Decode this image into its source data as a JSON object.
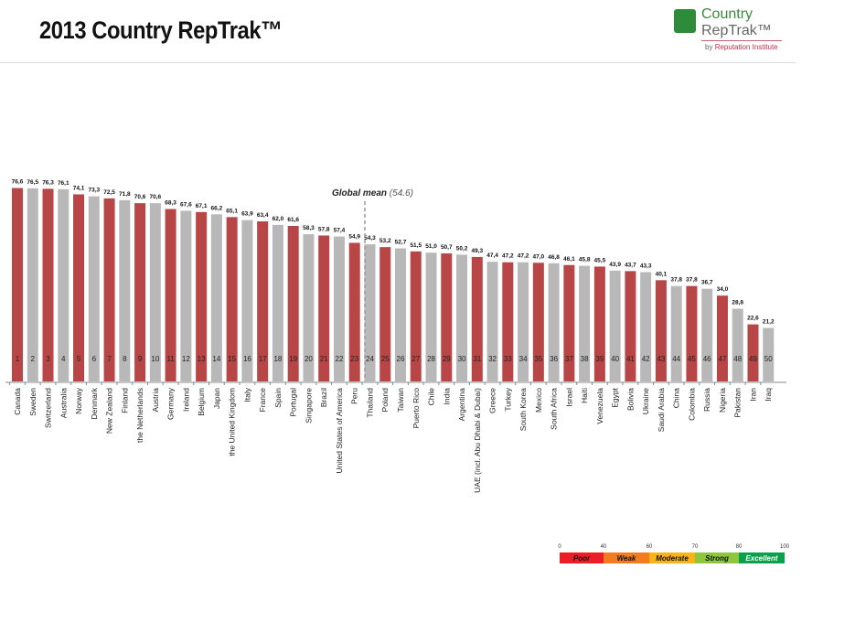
{
  "header": {
    "title": "2013 Country RepTrak™"
  },
  "logo": {
    "line1": "Country",
    "line2": "RepTrak™",
    "by": "by",
    "company": "Reputation Institute"
  },
  "chart_data": {
    "type": "bar",
    "title": "2013 Country RepTrak™",
    "categories": [
      "Canada",
      "Sweden",
      "Switzerland",
      "Australia",
      "Norway",
      "Denmark",
      "New Zealand",
      "Finland",
      "the Netherlands",
      "Austria",
      "Germany",
      "Ireland",
      "Belgium",
      "Japan",
      "the United Kingdom",
      "Italy",
      "France",
      "Spain",
      "Portugal",
      "Singapore",
      "Brazil",
      "United States of America",
      "Peru",
      "Thailand",
      "Poland",
      "Taiwan",
      "Puerto Rico",
      "Chile",
      "India",
      "Argentina",
      "UAE (incl. Abu Dhabi & Dubai)",
      "Greece",
      "Turkey",
      "South Korea",
      "Mexico",
      "South Africa",
      "Israel",
      "Haiti",
      "Venezuela",
      "Egypt",
      "Bolivia",
      "Ukraine",
      "Saudi Arabia",
      "China",
      "Colombia",
      "Russia",
      "Nigeria",
      "Pakistan",
      "Iran",
      "Iraq"
    ],
    "values": [
      76.6,
      76.5,
      76.3,
      76.1,
      74.1,
      73.3,
      72.5,
      71.8,
      70.6,
      70.6,
      68.3,
      67.6,
      67.1,
      66.2,
      65.1,
      63.9,
      63.4,
      62.0,
      61.6,
      58.3,
      57.8,
      57.4,
      54.9,
      54.3,
      53.2,
      52.7,
      51.5,
      51.0,
      50.7,
      50.2,
      49.3,
      47.4,
      47.2,
      47.2,
      47.0,
      46.8,
      46.1,
      45.8,
      45.5,
      43.9,
      43.7,
      43.3,
      40.1,
      37.8,
      37.8,
      36.7,
      34.0,
      28.8,
      22.6,
      21.2
    ],
    "value_labels": [
      "76,6",
      "76,5",
      "76,3",
      "76,1",
      "74,1",
      "73,3",
      "72,5",
      "71,8",
      "70,6",
      "70,6",
      "68,3",
      "67,6",
      "67,1",
      "66,2",
      "65,1",
      "63,9",
      "63,4",
      "62,0",
      "61,6",
      "58,3",
      "57,8",
      "57,4",
      "54,9",
      "54,3",
      "53,2",
      "52,7",
      "51,5",
      "51,0",
      "50,7",
      "50,2",
      "49,3",
      "47,4",
      "47,2",
      "47,2",
      "47,0",
      "46,8",
      "46,1",
      "45,8",
      "45,5",
      "43,9",
      "43,7",
      "43,3",
      "40,1",
      "37,8",
      "37,8",
      "36,7",
      "34,0",
      "28,8",
      "22,6",
      "21,2"
    ],
    "colors": {
      "odd": "#b84646",
      "even": "#b8b8b8"
    },
    "mean": {
      "value": 54.6,
      "label": "Global mean",
      "value_label": "(54.6)"
    },
    "ylim": [
      0,
      100
    ],
    "grid": false,
    "legend": {
      "placement": "bottom-right",
      "ticks": [
        "0",
        "40",
        "60",
        "70",
        "80",
        "100"
      ],
      "bands": [
        {
          "label": "Poor",
          "from": 0,
          "to": 40,
          "color": "#ee1c25"
        },
        {
          "label": "Weak",
          "from": 40,
          "to": 60,
          "color": "#f47c20"
        },
        {
          "label": "Moderate",
          "from": 60,
          "to": 70,
          "color": "#fbb416"
        },
        {
          "label": "Strong",
          "from": 70,
          "to": 80,
          "color": "#8dc63f"
        },
        {
          "label": "Excellent",
          "from": 80,
          "to": 100,
          "color": "#0aa14b"
        }
      ]
    }
  }
}
